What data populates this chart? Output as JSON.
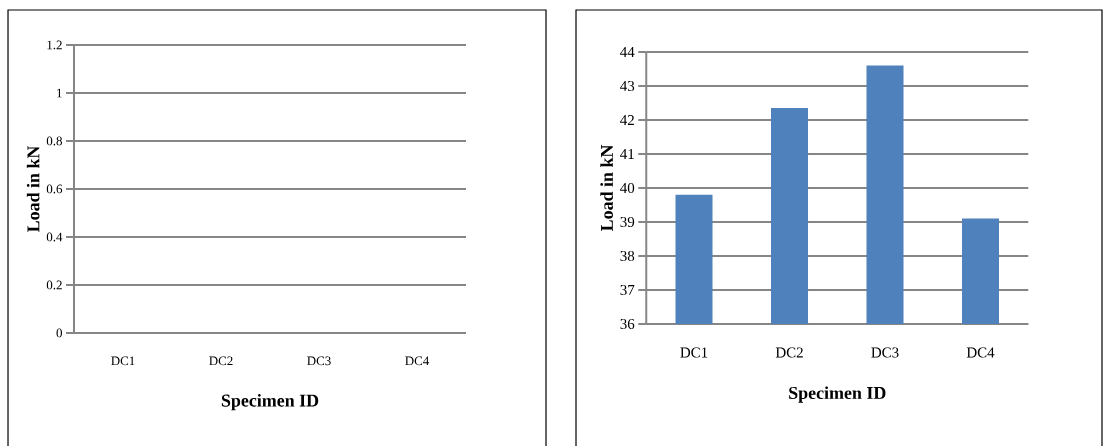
{
  "chart_data": [
    {
      "type": "bar",
      "categories": [
        "DC1",
        "DC2",
        "DC3",
        "DC4"
      ],
      "values": [
        null,
        null,
        null,
        null
      ],
      "xlabel": "Specimen ID",
      "ylabel": "Load in kN",
      "ylim": [
        0,
        1.2
      ],
      "yticks": [
        0,
        0.2,
        0.4,
        0.6,
        0.8,
        1,
        1.2
      ],
      "grid": "y"
    },
    {
      "type": "bar",
      "categories": [
        "DC1",
        "DC2",
        "DC3",
        "DC4"
      ],
      "values": [
        39.8,
        42.35,
        43.6,
        39.1
      ],
      "color": "#4f81bd",
      "xlabel": "Specimen ID",
      "ylabel": "Load in kN",
      "ylim": [
        36,
        44
      ],
      "yticks": [
        36,
        37,
        38,
        39,
        40,
        41,
        42,
        43,
        44
      ],
      "grid": "y"
    }
  ]
}
